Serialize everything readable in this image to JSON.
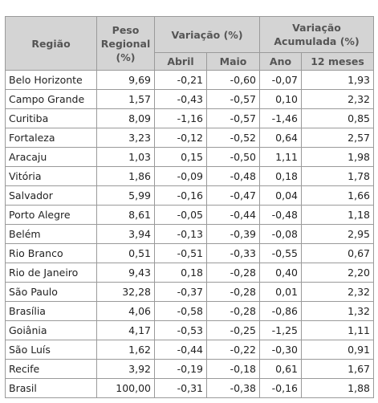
{
  "table": {
    "headers": {
      "regiao": "Região",
      "peso": "Peso Regional (%)",
      "variacao": "Variação (%)",
      "variacao_acumulada": "Variação Acumulada (%)",
      "abril": "Abril",
      "maio": "Maio",
      "ano": "Ano",
      "doze_meses": "12 meses"
    },
    "rows": [
      [
        "Belo Horizonte",
        "9,69",
        "-0,21",
        "-0,60",
        "-0,07",
        "1,93"
      ],
      [
        "Campo Grande",
        "1,57",
        "-0,43",
        "-0,57",
        "0,10",
        "2,32"
      ],
      [
        "Curitiba",
        "8,09",
        "-1,16",
        "-0,57",
        "-1,46",
        "0,85"
      ],
      [
        "Fortaleza",
        "3,23",
        "-0,12",
        "-0,52",
        "0,64",
        "2,57"
      ],
      [
        "Aracaju",
        "1,03",
        "0,15",
        "-0,50",
        "1,11",
        "1,98"
      ],
      [
        "Vitória",
        "1,86",
        "-0,09",
        "-0,48",
        "0,18",
        "1,78"
      ],
      [
        "Salvador",
        "5,99",
        "-0,16",
        "-0,47",
        "0,04",
        "1,66"
      ],
      [
        "Porto Alegre",
        "8,61",
        "-0,05",
        "-0,44",
        "-0,48",
        "1,18"
      ],
      [
        "Belém",
        "3,94",
        "-0,13",
        "-0,39",
        "-0,08",
        "2,95"
      ],
      [
        "Rio Branco",
        "0,51",
        "-0,51",
        "-0,33",
        "-0,55",
        "0,67"
      ],
      [
        "Rio de Janeiro",
        "9,43",
        "0,18",
        "-0,28",
        "0,40",
        "2,20"
      ],
      [
        "São Paulo",
        "32,28",
        "-0,37",
        "-0,28",
        "0,01",
        "2,32"
      ],
      [
        "Brasília",
        "4,06",
        "-0,58",
        "-0,28",
        "-0,86",
        "1,32"
      ],
      [
        "Goiânia",
        "4,17",
        "-0,53",
        "-0,25",
        "-1,25",
        "1,11"
      ],
      [
        "São Luís",
        "1,62",
        "-0,44",
        "-0,22",
        "-0,30",
        "0,91"
      ],
      [
        "Recife",
        "3,92",
        "-0,19",
        "-0,18",
        "0,61",
        "1,67"
      ],
      [
        "Brasil",
        "100,00",
        "-0,31",
        "-0,38",
        "-0,16",
        "1,88"
      ]
    ]
  }
}
